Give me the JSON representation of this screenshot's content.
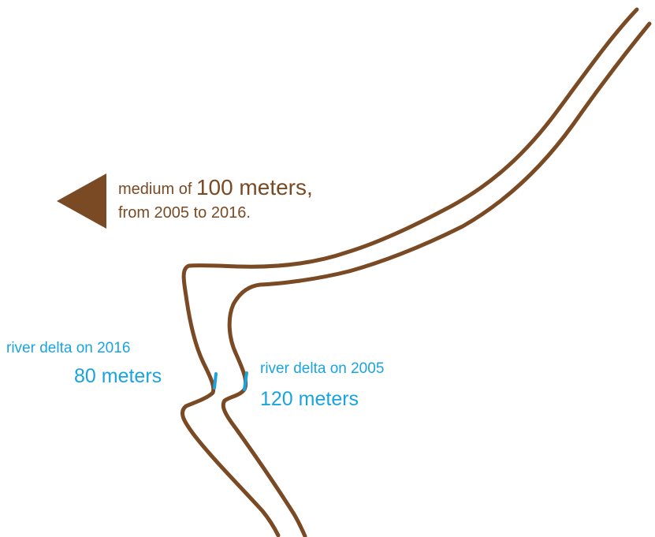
{
  "summary": {
    "prefix": "medium of ",
    "amount": "100 meters,",
    "period": "from 2005 to 2016."
  },
  "delta_2016": {
    "title": "river delta on 2016",
    "value": "80 meters"
  },
  "delta_2005": {
    "title": "river delta on 2005",
    "value": "120 meters"
  },
  "colors": {
    "river": "#7a4a24",
    "measurement": "#1aa4df"
  },
  "icons": {
    "arrow": "left-triangle-arrow-icon"
  }
}
